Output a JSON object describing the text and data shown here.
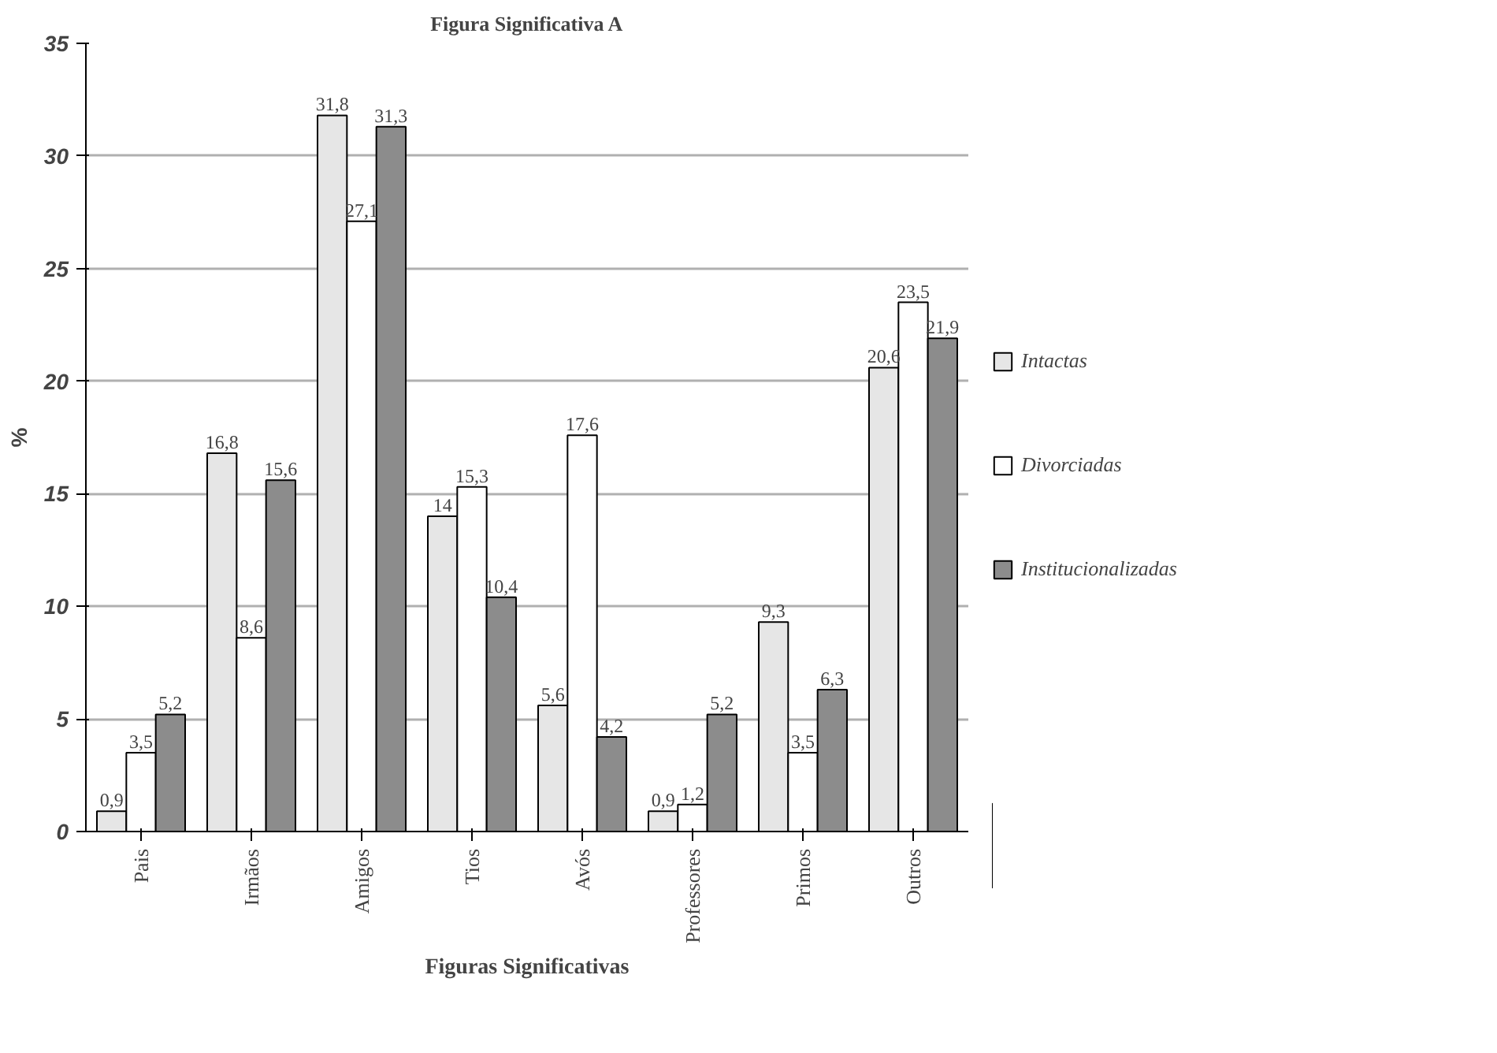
{
  "chart_data": {
    "type": "bar",
    "title": "Figura Significativa A",
    "xlabel": "Figuras Significativas",
    "ylabel": "%",
    "categories": [
      "Pais",
      "Irmãos",
      "Amigos",
      "Tios",
      "Avós",
      "Professores",
      "Primos",
      "Outros"
    ],
    "series": [
      {
        "name": "Intactas",
        "color": "#e6e6e6",
        "values": [
          0.9,
          16.8,
          31.8,
          14,
          5.6,
          0.9,
          9.3,
          20.6
        ],
        "value_labels": [
          "0,9",
          "16,8",
          "31,8",
          "14",
          "5,6",
          "0,9",
          "9,3",
          "20,6"
        ]
      },
      {
        "name": "Divorciadas",
        "color": "#ffffff",
        "values": [
          3.5,
          8.6,
          27.1,
          15.3,
          17.6,
          1.2,
          3.5,
          23.5
        ],
        "value_labels": [
          "3,5",
          "8,6",
          "27,1",
          "15,3",
          "17,6",
          "1,2",
          "3,5",
          "23,5"
        ]
      },
      {
        "name": "Institucionalizadas",
        "color": "#8c8c8c",
        "values": [
          5.2,
          15.6,
          31.3,
          10.4,
          4.2,
          5.2,
          6.3,
          21.9
        ],
        "value_labels": [
          "5,2",
          "15,6",
          "31,3",
          "10,4",
          "4,2",
          "5,2",
          "6,3",
          "21,9"
        ]
      }
    ],
    "ylim": [
      0,
      35
    ],
    "yticks": [
      0,
      5,
      10,
      15,
      20,
      25,
      30,
      35
    ],
    "grid": "y",
    "legend": "right"
  }
}
